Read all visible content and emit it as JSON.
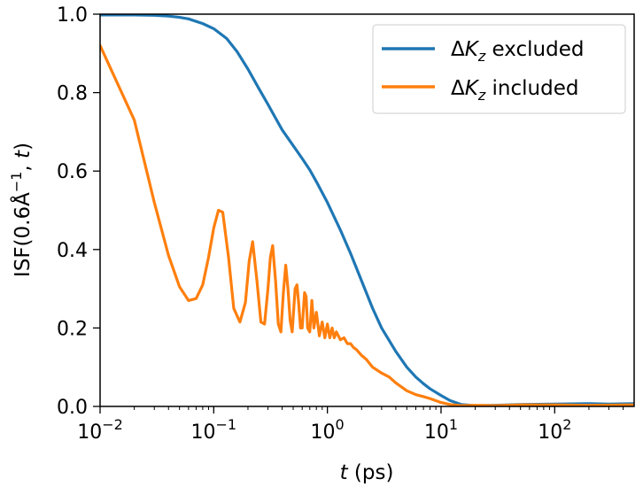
{
  "chart_data": {
    "type": "line",
    "x_scale": "log",
    "xlim": [
      0.01,
      500
    ],
    "ylim": [
      0.0,
      1.0
    ],
    "xlabel": {
      "italic": "t",
      "rest": " (ps)"
    },
    "ylabel": {
      "prefix": "ISF(0.6",
      "unit_base": "Å",
      "unit_sup": "−1",
      "mid": ", ",
      "italic": "t",
      "suffix": ")"
    },
    "x_ticks": [
      {
        "value": 0.01,
        "base": "10",
        "exp": "−2"
      },
      {
        "value": 0.1,
        "base": "10",
        "exp": "−1"
      },
      {
        "value": 1,
        "base": "10",
        "exp": "0"
      },
      {
        "value": 10,
        "base": "10",
        "exp": "1"
      },
      {
        "value": 100,
        "base": "10",
        "exp": "2"
      }
    ],
    "y_ticks": [
      {
        "value": 0.0,
        "label": "0.0"
      },
      {
        "value": 0.2,
        "label": "0.2"
      },
      {
        "value": 0.4,
        "label": "0.4"
      },
      {
        "value": 0.6,
        "label": "0.6"
      },
      {
        "value": 0.8,
        "label": "0.8"
      },
      {
        "value": 1.0,
        "label": "1.0"
      }
    ],
    "grid": false,
    "legend_position": "top-right",
    "series": [
      {
        "name": {
          "delta": "Δ",
          "sym": "K",
          "sub": "z",
          "rest": " excluded"
        },
        "color": "#1f77b4",
        "x": [
          0.01,
          0.02,
          0.03,
          0.04,
          0.05,
          0.06,
          0.08,
          0.1,
          0.13,
          0.16,
          0.2,
          0.25,
          0.3,
          0.35,
          0.4,
          0.5,
          0.6,
          0.7,
          0.8,
          1.0,
          1.3,
          1.6,
          2.0,
          2.5,
          3.0,
          4.0,
          5.0,
          6.0,
          7.0,
          8.0,
          10.0,
          12.0,
          15.0,
          20.0,
          30.0,
          50.0,
          100.0,
          200.0,
          300.0,
          500.0
        ],
        "y": [
          0.998,
          0.998,
          0.997,
          0.995,
          0.992,
          0.988,
          0.976,
          0.963,
          0.938,
          0.905,
          0.86,
          0.81,
          0.77,
          0.735,
          0.705,
          0.665,
          0.632,
          0.603,
          0.573,
          0.52,
          0.45,
          0.39,
          0.32,
          0.25,
          0.2,
          0.14,
          0.1,
          0.075,
          0.058,
          0.045,
          0.028,
          0.015,
          0.005,
          0.002,
          0.003,
          0.005,
          0.006,
          0.007,
          0.006,
          0.007
        ]
      },
      {
        "name": {
          "delta": "Δ",
          "sym": "K",
          "sub": "z",
          "rest": " included"
        },
        "color": "#ff7f0e",
        "x": [
          0.01,
          0.02,
          0.03,
          0.04,
          0.05,
          0.06,
          0.07,
          0.08,
          0.09,
          0.1,
          0.11,
          0.12,
          0.135,
          0.15,
          0.17,
          0.19,
          0.205,
          0.22,
          0.24,
          0.26,
          0.28,
          0.3,
          0.315,
          0.33,
          0.35,
          0.37,
          0.39,
          0.41,
          0.43,
          0.45,
          0.47,
          0.49,
          0.52,
          0.54,
          0.56,
          0.58,
          0.6,
          0.63,
          0.65,
          0.67,
          0.7,
          0.73,
          0.76,
          0.8,
          0.85,
          0.9,
          0.95,
          1.0,
          1.05,
          1.1,
          1.15,
          1.2,
          1.3,
          1.4,
          1.5,
          1.6,
          1.7,
          1.8,
          2.0,
          2.2,
          2.5,
          3.0,
          3.5,
          4.0,
          5.0,
          6.0,
          7.0,
          8.0,
          10.0,
          12.0,
          15.0,
          20.0,
          30.0,
          50.0,
          100.0,
          200.0,
          500.0
        ],
        "y": [
          0.92,
          0.73,
          0.52,
          0.385,
          0.305,
          0.27,
          0.275,
          0.31,
          0.38,
          0.455,
          0.5,
          0.495,
          0.38,
          0.25,
          0.215,
          0.265,
          0.37,
          0.42,
          0.32,
          0.215,
          0.21,
          0.3,
          0.38,
          0.41,
          0.32,
          0.21,
          0.19,
          0.29,
          0.36,
          0.3,
          0.22,
          0.19,
          0.3,
          0.31,
          0.26,
          0.2,
          0.2,
          0.29,
          0.28,
          0.2,
          0.19,
          0.27,
          0.2,
          0.24,
          0.18,
          0.215,
          0.175,
          0.21,
          0.175,
          0.2,
          0.175,
          0.19,
          0.17,
          0.175,
          0.16,
          0.16,
          0.15,
          0.145,
          0.13,
          0.12,
          0.1,
          0.085,
          0.075,
          0.06,
          0.04,
          0.03,
          0.025,
          0.02,
          0.01,
          0.005,
          0.002,
          0.003,
          0.002,
          0.004,
          0.004,
          0.003,
          0.004
        ]
      }
    ]
  }
}
